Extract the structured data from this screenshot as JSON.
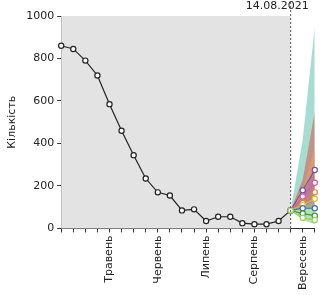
{
  "chart_data": {
    "type": "line",
    "y_label": "Кількість",
    "categories": [
      null,
      null,
      null,
      null,
      "Травень",
      null,
      null,
      null,
      "Червень",
      null,
      null,
      null,
      "Липень",
      null,
      null,
      null,
      "Серпень",
      null,
      null,
      null,
      "Вересень",
      null
    ],
    "ylim": [
      0,
      1000
    ],
    "yticks": [
      0,
      200,
      400,
      600,
      800,
      1000
    ],
    "grid": false,
    "annotations": [
      {
        "text": "14.08.2021",
        "x_index": 19
      }
    ],
    "series": [
      {
        "color": "#222222",
        "marker": "circle",
        "values": [
          860,
          845,
          790,
          720,
          585,
          460,
          345,
          235,
          170,
          155,
          85,
          90,
          35,
          55,
          55,
          25,
          20,
          20,
          35,
          85,
          null,
          null
        ]
      },
      {
        "color": "#7b4fa0",
        "marker": "circle",
        "values": [
          null,
          null,
          null,
          null,
          null,
          null,
          null,
          null,
          null,
          null,
          null,
          null,
          null,
          null,
          null,
          null,
          null,
          null,
          null,
          85,
          180,
          275
        ]
      },
      {
        "color": "#e05a9a",
        "marker": "circle",
        "values": [
          null,
          null,
          null,
          null,
          null,
          null,
          null,
          null,
          null,
          null,
          null,
          null,
          null,
          null,
          null,
          null,
          null,
          null,
          null,
          85,
          150,
          215
        ]
      },
      {
        "color": "#e08a30",
        "marker": "circle",
        "values": [
          null,
          null,
          null,
          null,
          null,
          null,
          null,
          null,
          null,
          null,
          null,
          null,
          null,
          null,
          null,
          null,
          null,
          null,
          null,
          85,
          120,
          170
        ]
      },
      {
        "color": "#d8c030",
        "marker": "circle",
        "values": [
          null,
          null,
          null,
          null,
          null,
          null,
          null,
          null,
          null,
          null,
          null,
          null,
          null,
          null,
          null,
          null,
          null,
          null,
          null,
          85,
          110,
          140
        ]
      },
      {
        "color": "#3a6fc0",
        "marker": "circle",
        "values": [
          null,
          null,
          null,
          null,
          null,
          null,
          null,
          null,
          null,
          null,
          null,
          null,
          null,
          null,
          null,
          null,
          null,
          null,
          null,
          85,
          95,
          95
        ]
      },
      {
        "color": "#3a9a40",
        "marker": "circle",
        "values": [
          null,
          null,
          null,
          null,
          null,
          null,
          null,
          null,
          null,
          null,
          null,
          null,
          null,
          null,
          null,
          null,
          null,
          null,
          null,
          85,
          70,
          60
        ]
      },
      {
        "color": "#9ad060",
        "marker": "circle",
        "values": [
          null,
          null,
          null,
          null,
          null,
          null,
          null,
          null,
          null,
          null,
          null,
          null,
          null,
          null,
          null,
          null,
          null,
          null,
          null,
          85,
          50,
          40
        ]
      }
    ],
    "bands": [
      {
        "color": "#5fbfaa",
        "lower": [
          null,
          null,
          null,
          null,
          null,
          null,
          null,
          null,
          null,
          null,
          null,
          null,
          null,
          null,
          null,
          null,
          null,
          null,
          null,
          85,
          110,
          150
        ],
        "upper": [
          null,
          null,
          null,
          null,
          null,
          null,
          null,
          null,
          null,
          null,
          null,
          null,
          null,
          null,
          null,
          null,
          null,
          null,
          null,
          85,
          420,
          950
        ]
      },
      {
        "color": "#d9534f",
        "lower": [
          null,
          null,
          null,
          null,
          null,
          null,
          null,
          null,
          null,
          null,
          null,
          null,
          null,
          null,
          null,
          null,
          null,
          null,
          null,
          85,
          100,
          130
        ],
        "upper": [
          null,
          null,
          null,
          null,
          null,
          null,
          null,
          null,
          null,
          null,
          null,
          null,
          null,
          null,
          null,
          null,
          null,
          null,
          null,
          85,
          230,
          550
        ]
      },
      {
        "color": "#f0a050",
        "lower": [
          null,
          null,
          null,
          null,
          null,
          null,
          null,
          null,
          null,
          null,
          null,
          null,
          null,
          null,
          null,
          null,
          null,
          null,
          null,
          85,
          90,
          110
        ],
        "upper": [
          null,
          null,
          null,
          null,
          null,
          null,
          null,
          null,
          null,
          null,
          null,
          null,
          null,
          null,
          null,
          null,
          null,
          null,
          null,
          85,
          180,
          380
        ]
      },
      {
        "color": "#8e6bbf",
        "lower": [
          null,
          null,
          null,
          null,
          null,
          null,
          null,
          null,
          null,
          null,
          null,
          null,
          null,
          null,
          null,
          null,
          null,
          null,
          null,
          85,
          90,
          100
        ],
        "upper": [
          null,
          null,
          null,
          null,
          null,
          null,
          null,
          null,
          null,
          null,
          null,
          null,
          null,
          null,
          null,
          null,
          null,
          null,
          null,
          85,
          150,
          300
        ]
      },
      {
        "color": "#7cc96a",
        "lower": [
          null,
          null,
          null,
          null,
          null,
          null,
          null,
          null,
          null,
          null,
          null,
          null,
          null,
          null,
          null,
          null,
          null,
          null,
          null,
          85,
          40,
          20
        ],
        "upper": [
          null,
          null,
          null,
          null,
          null,
          null,
          null,
          null,
          null,
          null,
          null,
          null,
          null,
          null,
          null,
          null,
          null,
          null,
          null,
          85,
          100,
          120
        ]
      }
    ]
  }
}
